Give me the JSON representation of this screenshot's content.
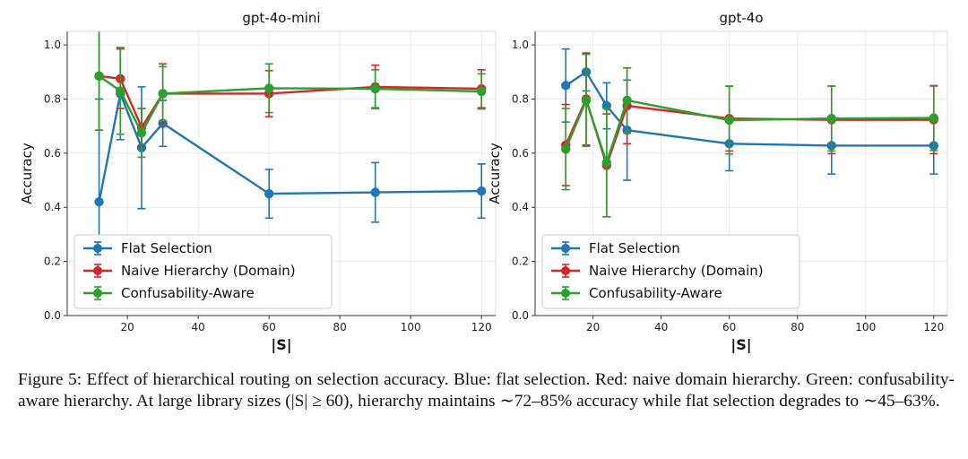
{
  "chart_data": [
    {
      "type": "line",
      "title": "gpt-4o-mini",
      "xlabel": "|S|",
      "ylabel": "Accuracy",
      "xlim": [
        3,
        124
      ],
      "ylim": [
        0,
        1.05
      ],
      "xticks": [
        20,
        40,
        60,
        80,
        100,
        120
      ],
      "yticks": [
        0.0,
        0.2,
        0.4,
        0.6,
        0.8,
        1.0
      ],
      "grid": true,
      "legend": "lower-left",
      "x": [
        12,
        18,
        24,
        30,
        60,
        90,
        120
      ],
      "series": [
        {
          "name": "Flat Selection",
          "color": "#1f77b4",
          "values": [
            0.42,
            0.82,
            0.62,
            0.71,
            0.45,
            0.455,
            0.46
          ],
          "err": [
            0.38,
            0.17,
            0.225,
            0.085,
            0.09,
            0.11,
            0.1
          ]
        },
        {
          "name": "Naive Hierarchy (Domain)",
          "color": "#d62728",
          "values": [
            0.885,
            0.875,
            0.695,
            0.82,
            0.82,
            0.845,
            0.838
          ],
          "err": [
            0.2,
            0.11,
            0.07,
            0.11,
            0.085,
            0.08,
            0.07
          ]
        },
        {
          "name": "Confusability-Aware",
          "color": "#2ca02c",
          "values": [
            0.885,
            0.83,
            0.675,
            0.82,
            0.84,
            0.838,
            0.828
          ],
          "err": [
            0.2,
            0.16,
            0.09,
            0.1,
            0.09,
            0.07,
            0.065
          ]
        }
      ]
    },
    {
      "type": "line",
      "title": "gpt-4o",
      "xlabel": "|S|",
      "ylabel": "Accuracy",
      "xlim": [
        3,
        124
      ],
      "ylim": [
        0,
        1.05
      ],
      "xticks": [
        20,
        40,
        60,
        80,
        100,
        120
      ],
      "yticks": [
        0.0,
        0.2,
        0.4,
        0.6,
        0.8,
        1.0
      ],
      "grid": true,
      "legend": "lower-left",
      "x": [
        12,
        18,
        24,
        30,
        60,
        90,
        120
      ],
      "series": [
        {
          "name": "Flat Selection",
          "color": "#1f77b4",
          "values": [
            0.85,
            0.9,
            0.775,
            0.685,
            0.635,
            0.628,
            0.628
          ],
          "err": [
            0.135,
            0.07,
            0.085,
            0.185,
            0.1,
            0.105,
            0.105
          ]
        },
        {
          "name": "Naive Hierarchy (Domain)",
          "color": "#d62728",
          "values": [
            0.63,
            0.8,
            0.555,
            0.775,
            0.728,
            0.723,
            0.723
          ],
          "err": [
            0.15,
            0.17,
            0.19,
            0.14,
            0.12,
            0.125,
            0.125
          ]
        },
        {
          "name": "Confusability-Aware",
          "color": "#2ca02c",
          "values": [
            0.615,
            0.795,
            0.565,
            0.795,
            0.722,
            0.728,
            0.73
          ],
          "err": [
            0.15,
            0.17,
            0.2,
            0.12,
            0.125,
            0.12,
            0.12
          ]
        }
      ]
    }
  ],
  "caption": {
    "text": "Figure 5: Effect of hierarchical routing on selection accuracy. Blue: flat selection. Red: naive domain hierarchy. Green: confusability-aware hierarchy. At large library sizes (|S| ≥ 60), hierarchy maintains ∼72–85% accuracy while flat selection degrades to ∼45–63%."
  }
}
